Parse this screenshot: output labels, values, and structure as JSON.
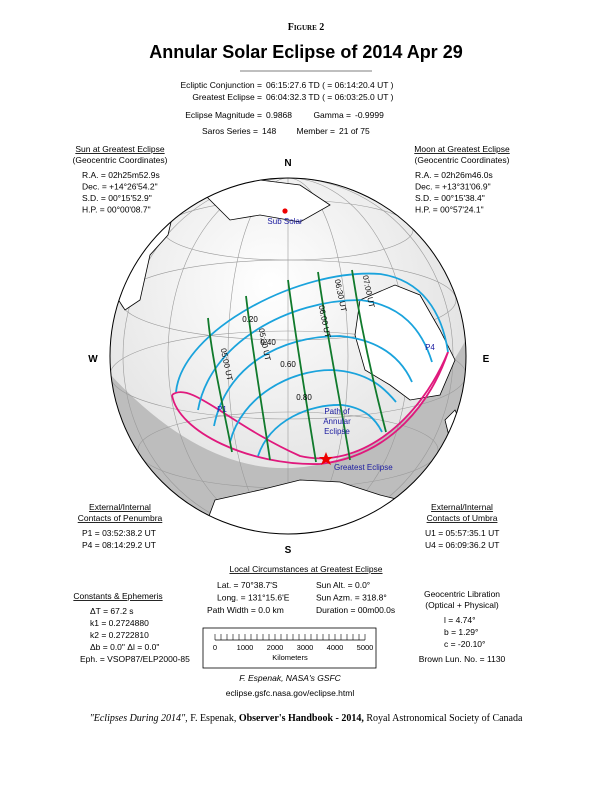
{
  "header": {
    "figure": "Figure 2",
    "title": "Annular Solar Eclipse of  2014 Apr 29"
  },
  "circumstances": [
    [
      "Ecliptic Conjunction =",
      "06:15:27.6 TD   ( = 06:14:20.4 UT )"
    ],
    [
      "Greatest Eclipse =",
      "06:04:32.3 TD   ( = 06:03:25.0 UT )"
    ],
    [
      "Eclipse Magnitude =",
      "0.9868"
    ],
    [
      "Gamma =",
      "-0.9999"
    ],
    [
      "Saros Series =",
      "148"
    ],
    [
      "Member =",
      "21 of 75"
    ]
  ],
  "sun": {
    "title": "Sun at Greatest Eclipse",
    "subtitle": "(Geocentric Coordinates)",
    "rows": [
      "R.A. = 02h25m52.9s",
      "Dec. = +14°26'54.2\"",
      "S.D. = 00°15'52.9\"",
      "H.P. = 00°00'08.7\""
    ]
  },
  "moon": {
    "title": "Moon at Greatest Eclipse",
    "subtitle": "(Geocentric Coordinates)",
    "rows": [
      "R.A. = 02h26m46.0s",
      "Dec. = +13°31'06.9\"",
      "S.D. = 00°15'38.4\"",
      "H.P. = 00°57'24.1\""
    ]
  },
  "globe": {
    "north": "N",
    "south": "S",
    "west": "W",
    "east": "E",
    "sub_solar": "Sub Solar",
    "magnitudes": [
      "0.20",
      "0.40",
      "0.60",
      "0.80"
    ],
    "times": [
      "05:00 UT",
      "05:30 UT",
      "06:00 UT",
      "06:30 UT",
      "07:00 UT"
    ],
    "p1": "P1",
    "p4": "P4",
    "path_label": [
      "Path of",
      "Annular",
      "Eclipse"
    ],
    "greatest": "Greatest Eclipse"
  },
  "penumbra": {
    "title": [
      "External/Internal",
      "Contacts of Penumbra"
    ],
    "rows": [
      "P1 = 03:52:38.2 UT",
      "P4 = 08:14:29.2 UT"
    ]
  },
  "umbra": {
    "title": [
      "External/Internal",
      "Contacts of Umbra"
    ],
    "rows": [
      "U1 = 05:57:35.1 UT",
      "U4 = 06:09:36.2 UT"
    ]
  },
  "local": {
    "title": "Local Circumstances at Greatest Eclipse",
    "rows": [
      [
        "Lat. =  70°38.7'S",
        "Sun Alt. =   0.0°"
      ],
      [
        "Long. = 131°15.6'E",
        "Sun Azm. = 318.8°"
      ],
      [
        "Path Width =   0.0 km",
        "Duration = 00m00.0s"
      ]
    ]
  },
  "constants": {
    "title": "Constants & Ephemeris",
    "rows": [
      "ΔT =    67.2 s",
      "k1 = 0.2724880",
      "k2 = 0.2722810",
      "Δb =  0.0\"   Δl =  0.0\"",
      "Eph. = VSOP87/ELP2000-85"
    ]
  },
  "libration": {
    "title": "Geocentric Libration",
    "subtitle": "(Optical + Physical)",
    "rows": [
      "l =   4.74°",
      "b =   1.29°",
      "c = -20.10°"
    ],
    "brown": "Brown Lun. No. = 1130"
  },
  "scale": {
    "ticks": [
      "0",
      "1000",
      "2000",
      "3000",
      "4000",
      "5000"
    ],
    "unit": "Kilometers"
  },
  "credit": {
    "author": "F. Espenak, NASA's GSFC",
    "url": "eclipse.gsfc.nasa.gov/eclipse.html"
  },
  "footer": {
    "source": "\"Eclipses During 2014\",",
    "author": "F. Espenak,",
    "book": "Observer's Handbook - 2014,",
    "org": "Royal Astronomical Society of Canada"
  }
}
